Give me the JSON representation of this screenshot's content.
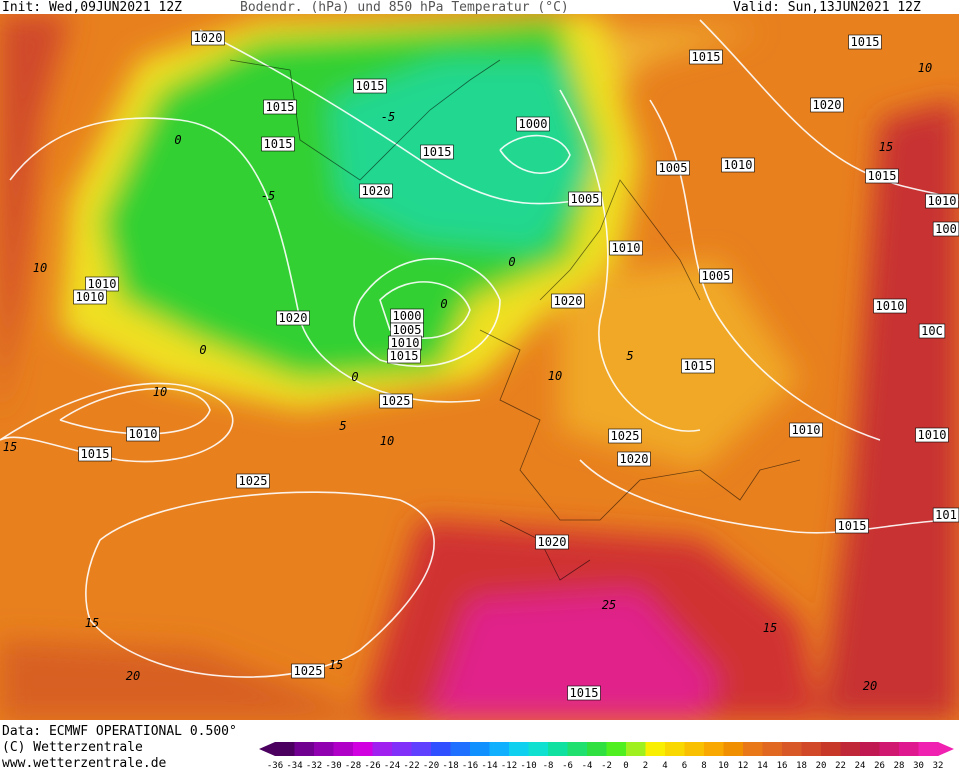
{
  "header": {
    "init": "Init: Wed,09JUN2021 12Z",
    "title": "Bodendr. (hPa) und 850 hPa Temperatur (°C)",
    "valid": "Valid: Sun,13JUN2021 12Z"
  },
  "map": {
    "isobar_labels": [
      "1020",
      "1015",
      "1015",
      "1015",
      "1015",
      "1020",
      "1000",
      "1005",
      "1005",
      "1010",
      "1015",
      "1015",
      "1020",
      "1015",
      "1010",
      "100",
      "1010",
      "1005",
      "1020",
      "1010",
      "10C",
      "1010",
      "1010",
      "1020",
      "1000",
      "1005",
      "1010",
      "1015",
      "1015",
      "1025",
      "1010",
      "1015",
      "1025",
      "1020",
      "1010",
      "1010",
      "1025",
      "1020",
      "1015",
      "101",
      "1025",
      "1015"
    ],
    "isotherm_labels": [
      "-5",
      "-5",
      "0",
      "0",
      "0",
      "0",
      "0",
      "5",
      "5",
      "10",
      "10",
      "10",
      "10",
      "10",
      "15",
      "15",
      "15",
      "15",
      "15",
      "20",
      "20",
      "25"
    ]
  },
  "footer": {
    "data": "Data: ECMWF OPERATIONAL 0.500°",
    "copyright": "(C) Wetterzentrale",
    "url": "www.wetterzentrale.de"
  },
  "legend": {
    "labels": [
      -36,
      -34,
      -32,
      -30,
      -28,
      -26,
      -24,
      -22,
      -20,
      -18,
      -16,
      -14,
      -12,
      -10,
      -8,
      -6,
      -4,
      -2,
      0,
      2,
      4,
      6,
      8,
      10,
      12,
      14,
      16,
      18,
      20,
      22,
      24,
      26,
      28,
      30,
      32
    ],
    "colors": [
      "#4b0060",
      "#700090",
      "#9000b0",
      "#b000c8",
      "#d000e0",
      "#a020f0",
      "#8030f8",
      "#6040ff",
      "#3050ff",
      "#2070ff",
      "#1090ff",
      "#10b0ff",
      "#10d0f0",
      "#10e0d0",
      "#10e0a0",
      "#20e070",
      "#30e040",
      "#50f020",
      "#a0f020",
      "#f8f000",
      "#f8d800",
      "#f8c000",
      "#f8a800",
      "#f09000",
      "#e87818",
      "#e06820",
      "#d85828",
      "#d04828",
      "#c83828",
      "#c02838",
      "#c01850",
      "#d01870",
      "#e01890",
      "#f020b0"
    ]
  }
}
